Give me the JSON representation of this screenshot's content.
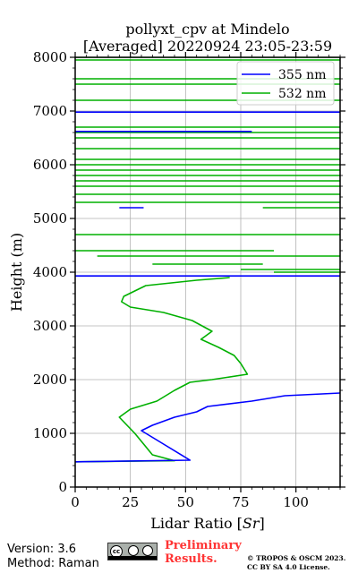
{
  "chart_data": {
    "type": "line",
    "title_line1": "pollyxt_cpv at Mindelo",
    "title_line2": "[Averaged] 20220924 23:05-23:59",
    "xlabel": "Lidar Ratio [",
    "xlabel_sym": "Sr",
    "xlabel_end": "]",
    "ylabel": "Height (m)",
    "xlim": [
      0,
      120
    ],
    "ylim": [
      0,
      8000
    ],
    "x_ticks": [
      0,
      25,
      50,
      75,
      100
    ],
    "y_ticks": [
      0,
      1000,
      2000,
      3000,
      4000,
      5000,
      6000,
      7000,
      8000
    ],
    "grid": true,
    "legend_position": "top-right",
    "series": [
      {
        "name": "355 nm",
        "color": "#0000ff",
        "profile": [
          [
            0,
            470
          ],
          [
            52,
            500
          ],
          [
            40,
            800
          ],
          [
            30,
            1050
          ],
          [
            35,
            1150
          ],
          [
            45,
            1300
          ],
          [
            55,
            1400
          ],
          [
            60,
            1500
          ],
          [
            80,
            1600
          ],
          [
            95,
            1700
          ],
          [
            120,
            1750
          ]
        ],
        "spikes": [
          [
            5200,
            20,
            31
          ],
          [
            3930,
            0,
            120
          ],
          [
            6620,
            0,
            80
          ],
          [
            6980,
            0,
            120
          ]
        ]
      },
      {
        "name": "532 nm",
        "color": "#00b000",
        "profile": [
          [
            0,
            470
          ],
          [
            45,
            490
          ],
          [
            35,
            600
          ],
          [
            31,
            800
          ],
          [
            27,
            1000
          ],
          [
            20,
            1300
          ],
          [
            25,
            1450
          ],
          [
            37,
            1600
          ],
          [
            45,
            1800
          ],
          [
            52,
            1950
          ],
          [
            62,
            2000
          ],
          [
            78,
            2100
          ],
          [
            75,
            2300
          ],
          [
            72,
            2450
          ],
          [
            65,
            2600
          ],
          [
            57,
            2750
          ],
          [
            62,
            2900
          ],
          [
            53,
            3100
          ],
          [
            40,
            3250
          ],
          [
            25,
            3350
          ],
          [
            21,
            3450
          ],
          [
            22,
            3550
          ],
          [
            27,
            3650
          ],
          [
            32,
            3750
          ],
          [
            55,
            3850
          ],
          [
            70,
            3900
          ]
        ],
        "spikes": [
          [
            4000,
            90,
            120
          ],
          [
            4050,
            75,
            120
          ],
          [
            4150,
            35,
            85
          ],
          [
            4300,
            10,
            120
          ],
          [
            4400,
            0,
            90
          ],
          [
            4700,
            0,
            120
          ],
          [
            5200,
            85,
            120
          ],
          [
            5300,
            0,
            120
          ],
          [
            5450,
            0,
            120
          ],
          [
            5600,
            0,
            120
          ],
          [
            5700,
            0,
            120
          ],
          [
            5800,
            0,
            120
          ],
          [
            5900,
            0,
            120
          ],
          [
            6000,
            0,
            120
          ],
          [
            6100,
            0,
            120
          ],
          [
            6300,
            0,
            120
          ],
          [
            6500,
            0,
            120
          ],
          [
            6600,
            0,
            120
          ],
          [
            6700,
            0,
            120
          ],
          [
            7200,
            0,
            120
          ],
          [
            7500,
            0,
            120
          ],
          [
            7600,
            0,
            120
          ],
          [
            7950,
            0,
            120
          ],
          [
            8000,
            0,
            120
          ]
        ]
      }
    ]
  },
  "footer": {
    "version": "Version: 3.6",
    "method": "Method: Raman",
    "preliminary_line1": "Preliminary",
    "preliminary_line2": "Results.",
    "copyright_line1": "© TROPOS & OSCM 2023.",
    "copyright_line2": "CC BY SA 4.0 License."
  },
  "cc_badge": {
    "text": "cc"
  }
}
